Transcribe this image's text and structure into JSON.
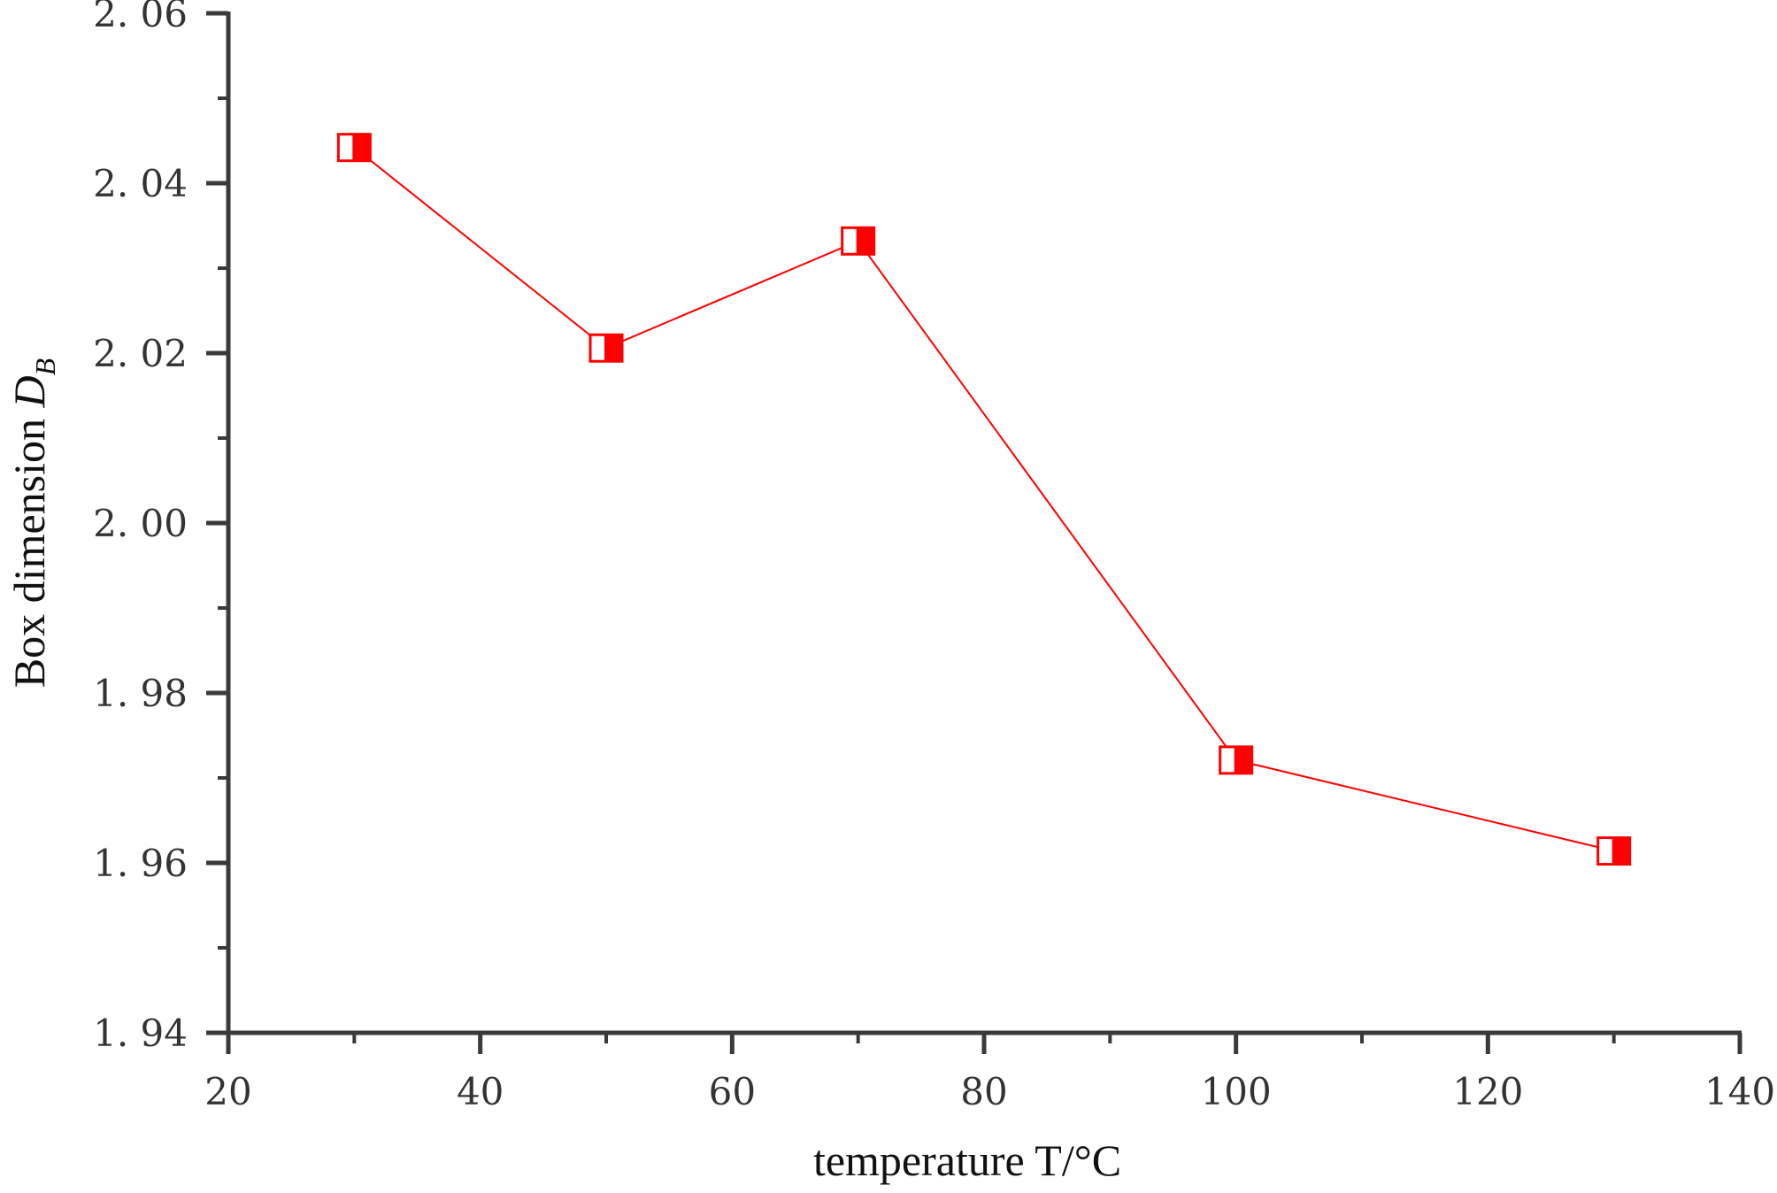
{
  "chart_data": {
    "type": "line",
    "title": "",
    "xlabel": "temperature T/°C",
    "ylabel": "Box dimension D",
    "ylabel_subscript": "B",
    "xlim": [
      20,
      140
    ],
    "ylim": [
      1.94,
      2.06
    ],
    "x_ticks": [
      20,
      40,
      60,
      80,
      100,
      120,
      140
    ],
    "x_tick_labels": [
      "20",
      "40",
      "60",
      "80",
      "100",
      "120",
      "140"
    ],
    "x_minor_ticks": [
      30,
      50,
      70,
      90,
      110,
      130
    ],
    "y_ticks": [
      1.94,
      1.96,
      1.98,
      2.0,
      2.02,
      2.04,
      2.06
    ],
    "y_tick_labels": [
      "1. 94",
      "1. 96",
      "1. 98",
      "2. 00",
      "2. 02",
      "2. 04",
      "2. 06"
    ],
    "y_minor_ticks": [
      1.95,
      1.97,
      1.99,
      2.01,
      2.03,
      2.05
    ],
    "grid": false,
    "legend": null,
    "series": [
      {
        "name": "Box dimension",
        "color": "#ff0000",
        "marker": "half-filled-square",
        "x": [
          30,
          50,
          70,
          100,
          130
        ],
        "values": [
          2.0442,
          2.0206,
          2.0332,
          1.9721,
          1.9614
        ]
      }
    ]
  },
  "colors": {
    "axis": "#3a3a3a",
    "series": "#ff0000",
    "background": "#ffffff"
  }
}
